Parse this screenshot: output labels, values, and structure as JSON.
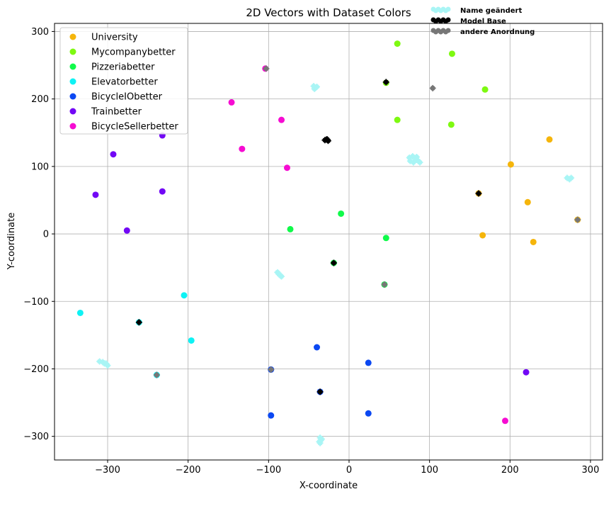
{
  "chart_data": {
    "type": "scatter",
    "title": "2D Vectors with Dataset Colors",
    "xlabel": "X-coordinate",
    "ylabel": "Y-coordinate",
    "xlim": [
      -366,
      315
    ],
    "ylim": [
      -335,
      312
    ],
    "xticks": [
      -300,
      -200,
      -100,
      0,
      100,
      200,
      300
    ],
    "xtick_labels": [
      "−300",
      "−200",
      "−100",
      "0",
      "100",
      "200",
      "300"
    ],
    "yticks": [
      300,
      200,
      100,
      0,
      -100,
      -200,
      -300
    ],
    "ytick_labels": [
      "300",
      "200",
      "100",
      "0",
      "−100",
      "−200",
      "−300"
    ],
    "grid": true,
    "legend_position": "top-left",
    "series": [
      {
        "name": "University",
        "color": "#f5b50b",
        "points": [
          [
            249,
            140
          ],
          [
            201,
            103
          ],
          [
            222,
            47
          ],
          [
            284,
            21
          ],
          [
            166,
            -2
          ],
          [
            229,
            -12
          ],
          [
            161,
            60
          ]
        ]
      },
      {
        "name": "Mycompanybetter",
        "color": "#7ef911",
        "points": [
          [
            60,
            282
          ],
          [
            128,
            267
          ],
          [
            169,
            214
          ],
          [
            60,
            169
          ],
          [
            127,
            162
          ],
          [
            46,
            224
          ]
        ]
      },
      {
        "name": "Pizzeriabetter",
        "color": "#10fa4a",
        "points": [
          [
            -10,
            30
          ],
          [
            -73,
            7
          ],
          [
            46,
            -6
          ],
          [
            -19,
            -43
          ],
          [
            44,
            -75
          ]
        ]
      },
      {
        "name": "Elevatorbetter",
        "color": "#0ef2f4",
        "points": [
          [
            -334,
            -117
          ],
          [
            -205,
            -91
          ],
          [
            -196,
            -158
          ],
          [
            -261,
            -131
          ],
          [
            -239,
            -209
          ]
        ]
      },
      {
        "name": "BicycleIObetter",
        "color": "#0b48f2",
        "points": [
          [
            -40,
            -168
          ],
          [
            24,
            -191
          ],
          [
            -97,
            -201
          ],
          [
            -97,
            -269
          ],
          [
            24,
            -266
          ],
          [
            -36,
            -234
          ]
        ]
      },
      {
        "name": "Trainbetter",
        "color": "#7208f5",
        "points": [
          [
            -293,
            118
          ],
          [
            -232,
            146
          ],
          [
            -315,
            58
          ],
          [
            -232,
            63
          ],
          [
            -276,
            5
          ],
          [
            220,
            -205
          ]
        ]
      },
      {
        "name": "BicycleSellerbetter",
        "color": "#f60cd2",
        "points": [
          [
            -146,
            195
          ],
          [
            -84,
            169
          ],
          [
            -133,
            126
          ],
          [
            -77,
            98
          ],
          [
            194,
            -277
          ],
          [
            -104,
            245
          ]
        ]
      }
    ],
    "overlay_series": [
      {
        "name": "Name geändert",
        "color": "#a9f5f5",
        "points": [
          [
            -44,
            219
          ],
          [
            -42,
            216
          ],
          [
            -40,
            218
          ],
          [
            -43,
            215
          ],
          [
            75,
            113
          ],
          [
            79,
            115
          ],
          [
            83,
            112
          ],
          [
            86,
            108
          ],
          [
            80,
            106
          ],
          [
            76,
            108
          ],
          [
            84,
            114
          ],
          [
            88,
            106
          ],
          [
            271,
            83
          ],
          [
            274,
            81
          ],
          [
            276,
            83
          ],
          [
            -89,
            -57
          ],
          [
            -87,
            -60
          ],
          [
            -85,
            -62
          ],
          [
            -84,
            -63
          ],
          [
            -88,
            -58
          ],
          [
            -310,
            -189
          ],
          [
            -306,
            -190
          ],
          [
            -302,
            -192
          ],
          [
            -300,
            -195
          ],
          [
            -304,
            -192
          ],
          [
            -36,
            -302
          ],
          [
            -35,
            -306
          ],
          [
            -36,
            -310
          ],
          [
            -34,
            -304
          ],
          [
            -37,
            -308
          ]
        ]
      },
      {
        "name": "Model Base",
        "color": "#000000",
        "points": [
          [
            46,
            225
          ],
          [
            -28,
            140
          ],
          [
            -26,
            138
          ],
          [
            -30,
            139
          ],
          [
            -27,
            140
          ],
          [
            161,
            60
          ],
          [
            -19,
            -43
          ],
          [
            -261,
            -131
          ],
          [
            -36,
            -234
          ]
        ]
      },
      {
        "name": "andere Anordnung",
        "color": "#777777",
        "points": [
          [
            -103,
            245
          ],
          [
            104,
            216
          ],
          [
            284,
            21
          ],
          [
            44,
            -75
          ],
          [
            -239,
            -209
          ],
          [
            -97,
            -201
          ]
        ]
      }
    ],
    "top_legend": [
      "Name geändert",
      "Model Base",
      "andere Anordnung"
    ]
  }
}
